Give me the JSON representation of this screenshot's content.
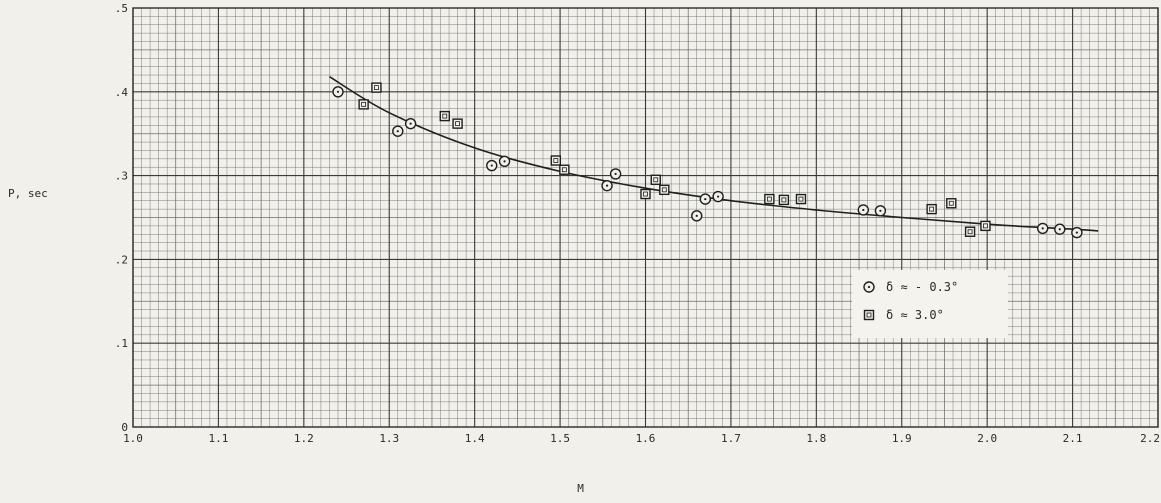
{
  "chart_data": {
    "type": "scatter",
    "xlabel": "M",
    "ylabel": "P, sec",
    "xlim": [
      1.0,
      2.2
    ],
    "ylim": [
      0,
      0.5
    ],
    "grid": true,
    "x_ticks": [
      "1.0",
      "1.1",
      "1.2",
      "1.3",
      "1.4",
      "1.5",
      "1.6",
      "1.7",
      "1.8",
      "1.9",
      "2.0",
      "2.1",
      "2.2"
    ],
    "y_ticks": [
      "0",
      ".1",
      ".2",
      ".3",
      ".4",
      ".5"
    ],
    "legend_position": "lower-right",
    "series": [
      {
        "name": "δ ≈ - 0.3°",
        "marker": "circle",
        "points": [
          [
            1.24,
            0.4
          ],
          [
            1.31,
            0.353
          ],
          [
            1.325,
            0.362
          ],
          [
            1.42,
            0.312
          ],
          [
            1.435,
            0.317
          ],
          [
            1.555,
            0.288
          ],
          [
            1.565,
            0.302
          ],
          [
            1.66,
            0.252
          ],
          [
            1.67,
            0.272
          ],
          [
            1.685,
            0.275
          ],
          [
            1.855,
            0.259
          ],
          [
            1.875,
            0.258
          ],
          [
            2.065,
            0.237
          ],
          [
            2.085,
            0.236
          ],
          [
            2.105,
            0.232
          ]
        ]
      },
      {
        "name": "δ ≈ 3.0°",
        "marker": "square",
        "points": [
          [
            1.27,
            0.385
          ],
          [
            1.285,
            0.405
          ],
          [
            1.365,
            0.371
          ],
          [
            1.38,
            0.362
          ],
          [
            1.495,
            0.318
          ],
          [
            1.505,
            0.307
          ],
          [
            1.6,
            0.278
          ],
          [
            1.612,
            0.295
          ],
          [
            1.622,
            0.283
          ],
          [
            1.745,
            0.272
          ],
          [
            1.762,
            0.271
          ],
          [
            1.782,
            0.272
          ],
          [
            1.935,
            0.26
          ],
          [
            1.958,
            0.267
          ],
          [
            1.98,
            0.233
          ],
          [
            1.998,
            0.24
          ]
        ]
      }
    ],
    "fit_curve": {
      "x": [
        1.23,
        1.3,
        1.4,
        1.5,
        1.6,
        1.7,
        1.8,
        1.9,
        2.0,
        2.1,
        2.13
      ],
      "y": [
        0.418,
        0.375,
        0.333,
        0.305,
        0.285,
        0.27,
        0.259,
        0.25,
        0.242,
        0.236,
        0.234
      ]
    }
  }
}
